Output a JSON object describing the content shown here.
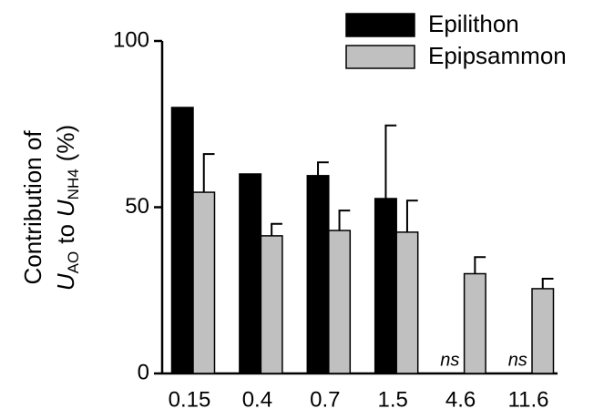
{
  "chart_data": {
    "type": "bar",
    "ylabel": [
      "Contribution of",
      "U",
      "AO",
      "to",
      "U",
      "NH4",
      "(%)"
    ],
    "categories": [
      "0.15",
      "0.4",
      "0.7",
      "1.5",
      "4.6",
      "11.6"
    ],
    "series": [
      {
        "name": "Epilithon",
        "color": "#000000",
        "values": [
          80,
          60,
          59.5,
          52.6,
          null,
          null
        ],
        "errors": [
          null,
          null,
          4,
          22,
          null,
          null
        ],
        "value_labels": [
          null,
          null,
          null,
          null,
          "ns",
          "ns"
        ]
      },
      {
        "name": "Epipsammon",
        "color": "#c0c0c0",
        "values": [
          54.5,
          41.4,
          43,
          42.5,
          30,
          25.5
        ],
        "errors": [
          11.5,
          3.6,
          6,
          9.5,
          5,
          3
        ]
      }
    ],
    "ylim": [
      0,
      100
    ],
    "yticks": [
      0,
      50,
      100
    ],
    "legend": "top-right"
  }
}
